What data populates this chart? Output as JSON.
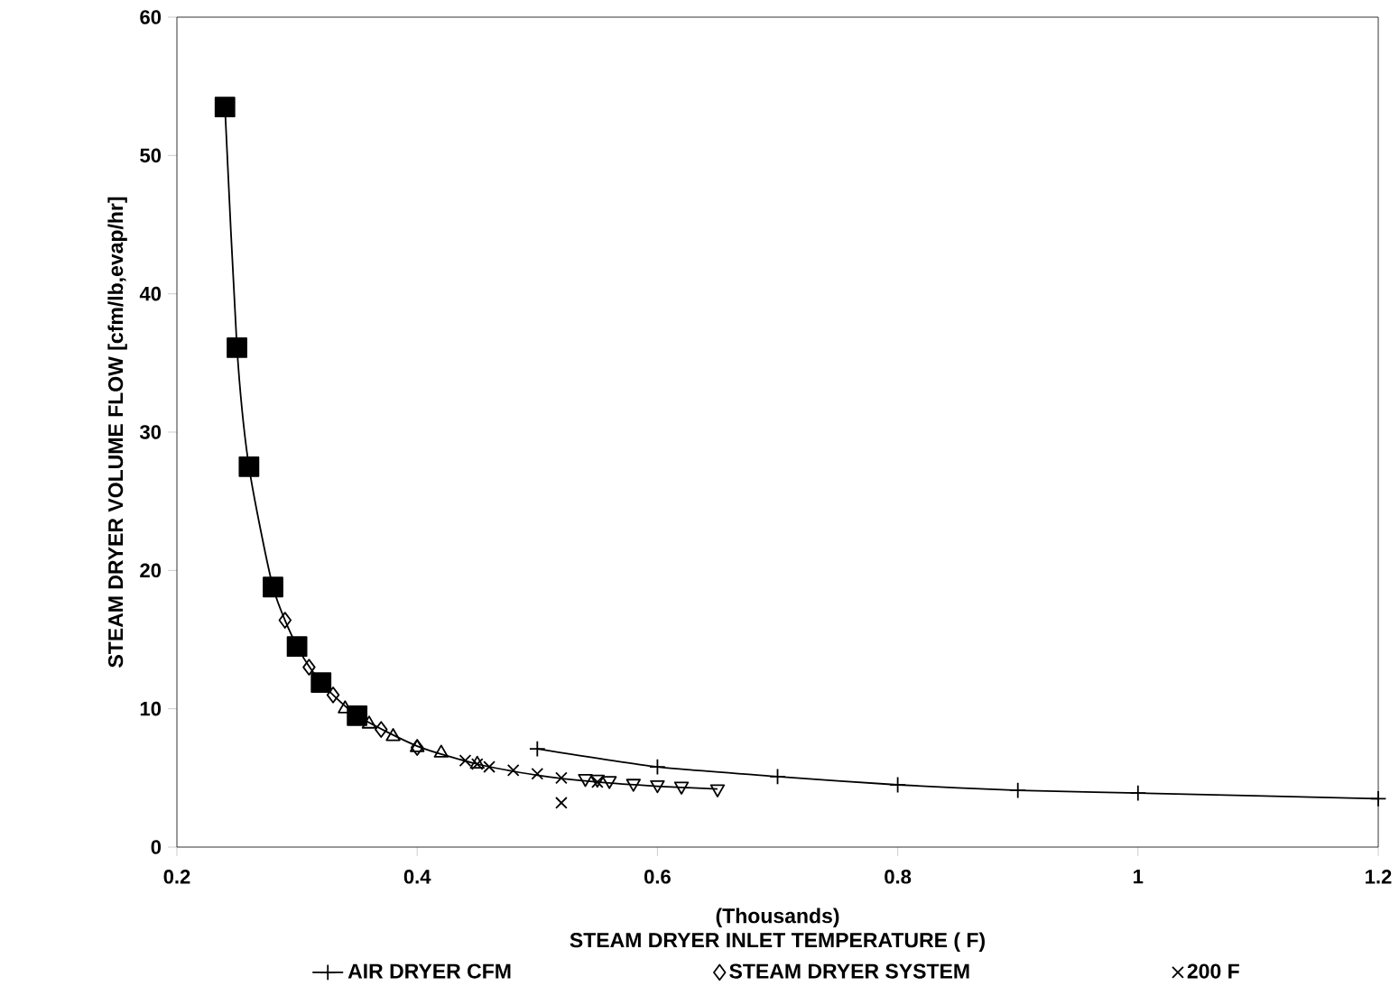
{
  "chart_data": {
    "type": "scatter",
    "xlabel": "STEAM DRYER INLET TEMPERATURE ( F)",
    "ylabel": "STEAM DRYER VOLUME FLOW [cfm/lb,evap/hr]",
    "annotations": [
      "(Thousands)"
    ],
    "xlim": [
      0.2,
      1.2
    ],
    "ylim": [
      0,
      60
    ],
    "xticks": [
      0.2,
      0.4,
      0.6,
      0.8,
      1,
      1.2
    ],
    "yticks": [
      0,
      10,
      20,
      30,
      40,
      50,
      60
    ],
    "grid": false,
    "legend": "bottom",
    "series": [
      {
        "name": "AIR DRYER CFM",
        "type": "line",
        "marker": "plus",
        "color": "#000000",
        "x": [
          0.5,
          0.6,
          0.7,
          0.8,
          0.9,
          1.0,
          1.2
        ],
        "values": [
          7.1,
          5.8,
          5.1,
          4.5,
          4.1,
          3.9,
          3.5
        ]
      },
      {
        "name": "STEAM DRYER SYSTEM",
        "type": "scatter",
        "marker": "diamond",
        "color": "#000000",
        "x": [
          0.29,
          0.31,
          0.33,
          0.37,
          0.4
        ],
        "values": [
          16.4,
          13.0,
          11.0,
          8.5,
          7.2
        ]
      },
      {
        "name": "200 F",
        "type": "scatter",
        "marker": "cross",
        "color": "#000000",
        "x": [
          0.44,
          0.45,
          0.455,
          0.46,
          0.48,
          0.5,
          0.52,
          0.52,
          0.55
        ],
        "values": [
          6.25,
          6.0,
          null,
          5.8,
          5.55,
          5.3,
          5.0,
          3.2,
          4.7
        ]
      },
      {
        "type": "line",
        "marker": "none",
        "color": "#000000",
        "x": [
          0.24,
          0.25,
          0.26,
          0.28,
          0.3,
          0.32,
          0.35,
          0.4,
          0.45,
          0.5,
          0.55,
          0.6,
          0.65
        ],
        "values": [
          53.5,
          36.1,
          27.5,
          18.8,
          14.5,
          11.9,
          9.5,
          7.3,
          6.0,
          5.2,
          4.7,
          4.4,
          4.2
        ]
      },
      {
        "type": "scatter",
        "marker": "square",
        "color": "#000000",
        "x": [
          0.24,
          0.25,
          0.26,
          0.28,
          0.3,
          0.32,
          0.35
        ],
        "values": [
          53.5,
          36.1,
          27.5,
          18.8,
          14.5,
          11.9,
          9.5
        ]
      },
      {
        "type": "scatter",
        "marker": "triangle",
        "color": "#000000",
        "x": [
          0.34,
          0.36,
          0.38,
          0.4,
          0.42,
          0.45
        ],
        "values": [
          10.0,
          8.9,
          8.0,
          7.2,
          6.8,
          6.0
        ]
      },
      {
        "type": "scatter",
        "marker": "triangle-down",
        "color": "#000000",
        "x": [
          0.54,
          0.55,
          0.56,
          0.58,
          0.6,
          0.62,
          0.65
        ],
        "values": [
          4.95,
          4.9,
          4.8,
          4.6,
          4.5,
          4.4,
          4.2
        ]
      }
    ]
  }
}
